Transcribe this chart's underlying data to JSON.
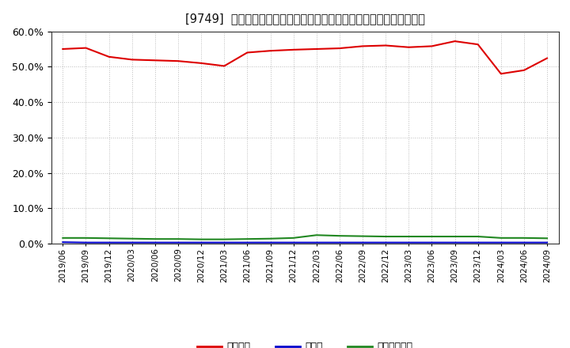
{
  "title": "[9749]  自己資本、のれん、繰延税金資産の総資産に対する比率の推移",
  "x_labels": [
    "2019/06",
    "2019/09",
    "2019/12",
    "2020/03",
    "2020/06",
    "2020/09",
    "2020/12",
    "2021/03",
    "2021/06",
    "2021/09",
    "2021/12",
    "2022/03",
    "2022/06",
    "2022/09",
    "2022/12",
    "2023/03",
    "2023/06",
    "2023/09",
    "2023/12",
    "2024/03",
    "2024/06",
    "2024/09"
  ],
  "equity": [
    0.55,
    0.553,
    0.528,
    0.52,
    0.518,
    0.516,
    0.51,
    0.502,
    0.54,
    0.545,
    0.548,
    0.55,
    0.552,
    0.558,
    0.56,
    0.555,
    0.558,
    0.572,
    0.563,
    0.48,
    0.49,
    0.524
  ],
  "goodwill": [
    0.004,
    0.003,
    0.003,
    0.003,
    0.003,
    0.003,
    0.003,
    0.003,
    0.003,
    0.003,
    0.003,
    0.003,
    0.003,
    0.003,
    0.003,
    0.003,
    0.003,
    0.003,
    0.003,
    0.003,
    0.003,
    0.003
  ],
  "deferred_tax": [
    0.016,
    0.016,
    0.015,
    0.014,
    0.013,
    0.013,
    0.012,
    0.012,
    0.013,
    0.014,
    0.016,
    0.024,
    0.022,
    0.021,
    0.02,
    0.02,
    0.02,
    0.02,
    0.02,
    0.016,
    0.016,
    0.015
  ],
  "equity_color": "#dd0000",
  "goodwill_color": "#0000cc",
  "deferred_tax_color": "#228822",
  "background_color": "#ffffff",
  "plot_bg_color": "#ffffff",
  "grid_color": "#aaaaaa",
  "ylim": [
    0.0,
    0.6
  ],
  "yticks": [
    0.0,
    0.1,
    0.2,
    0.3,
    0.4,
    0.5,
    0.6
  ],
  "legend_labels": [
    "自己資本",
    "のれん",
    "繰延税金資産"
  ],
  "title_prefix": "[9749]  ",
  "title_body": "自己資本、のれん、繰延税金資産の総資産に対する比率の推移"
}
